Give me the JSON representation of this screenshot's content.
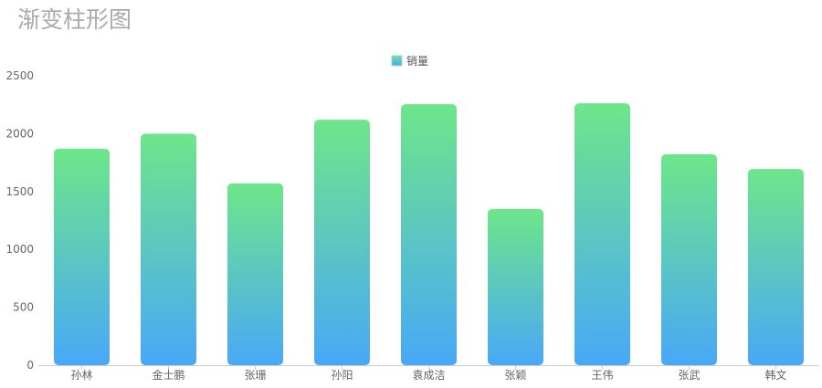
{
  "chart_data": {
    "type": "bar",
    "title": "渐变柱形图",
    "categories": [
      "孙林",
      "金士鹏",
      "张珊",
      "孙阳",
      "袁成洁",
      "张颖",
      "王伟",
      "张武",
      "韩文"
    ],
    "series": [
      {
        "name": "销量",
        "values": [
          1870,
          2000,
          1570,
          2120,
          2255,
          1350,
          2262,
          1822,
          1695
        ]
      }
    ],
    "ylim": [
      0,
      2500
    ],
    "yticks": [
      0,
      500,
      1000,
      1500,
      2000,
      2500
    ],
    "grid": false,
    "legend": "top-center",
    "colors": {
      "gradient_top": "#6ee68a",
      "gradient_bottom": "#48a8f7"
    }
  }
}
